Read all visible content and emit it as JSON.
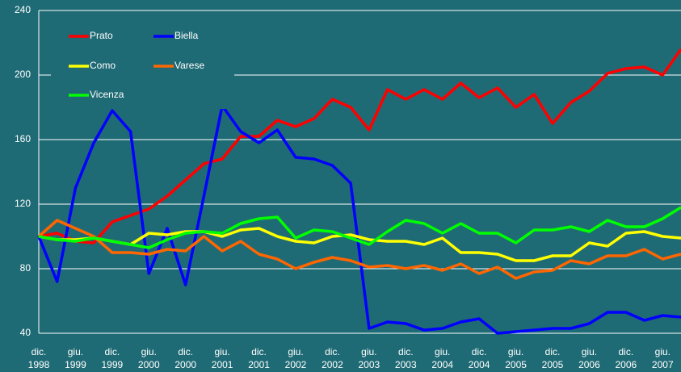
{
  "chart_data": {
    "type": "line",
    "categories": [
      "dic. 1998",
      null,
      "giu. 1999",
      null,
      "dic. 1999",
      null,
      "giu. 2000",
      null,
      "dic. 2000",
      null,
      "giu. 2001",
      null,
      "dic. 2001",
      null,
      "giu. 2002",
      null,
      "dic. 2002",
      null,
      "giu. 2003",
      null,
      "dic. 2003",
      null,
      "giu. 2004",
      null,
      "dic. 2004",
      null,
      "giu. 2005",
      null,
      "dic. 2005",
      null,
      "giu. 2006",
      null,
      "dic. 2006",
      null,
      "giu. 2007",
      null
    ],
    "series": [
      {
        "name": "Prato",
        "color": "#ff0000",
        "values": [
          100,
          102,
          97,
          96,
          109,
          113,
          117,
          125,
          135,
          145,
          148,
          162,
          162,
          172,
          168,
          173,
          185,
          180,
          166,
          191,
          185,
          191,
          185,
          195,
          186,
          192,
          180,
          188,
          170,
          183,
          190,
          201,
          204,
          205,
          200,
          216
        ]
      },
      {
        "name": "Biella",
        "color": "#0000ff",
        "values": [
          100,
          72,
          130,
          158,
          178,
          165,
          77,
          105,
          70,
          125,
          181,
          165,
          158,
          166,
          149,
          148,
          144,
          133,
          43,
          47,
          46,
          42,
          43,
          47,
          49,
          40,
          41,
          42,
          43,
          43,
          46,
          53,
          53,
          48,
          51,
          50
        ]
      },
      {
        "name": "Como",
        "color": "#ffff00",
        "values": [
          100,
          98,
          98,
          99,
          97,
          95,
          102,
          101,
          103,
          103,
          100,
          104,
          105,
          100,
          97,
          96,
          100,
          101,
          98,
          97,
          97,
          95,
          99,
          90,
          90,
          89,
          85,
          85,
          88,
          88,
          96,
          94,
          102,
          103,
          100,
          99
        ]
      },
      {
        "name": "Varese",
        "color": "#ff6600",
        "values": [
          100,
          110,
          105,
          100,
          90,
          90,
          89,
          92,
          91,
          100,
          91,
          97,
          89,
          86,
          80,
          84,
          87,
          85,
          81,
          82,
          80,
          82,
          79,
          83,
          77,
          81,
          74,
          78,
          79,
          85,
          83,
          88,
          88,
          92,
          86,
          89
        ]
      },
      {
        "name": "Vicenza",
        "color": "#00ff00",
        "values": [
          100,
          98,
          97,
          99,
          97,
          95,
          93,
          98,
          102,
          103,
          102,
          108,
          111,
          112,
          99,
          104,
          103,
          99,
          95,
          103,
          110,
          108,
          102,
          108,
          102,
          102,
          96,
          104,
          104,
          106,
          103,
          110,
          106,
          106,
          111,
          118
        ]
      }
    ],
    "ylim": [
      40,
      240
    ],
    "yticks": [
      40,
      80,
      120,
      160,
      200,
      240
    ],
    "grid": true,
    "legend": "top-left"
  }
}
